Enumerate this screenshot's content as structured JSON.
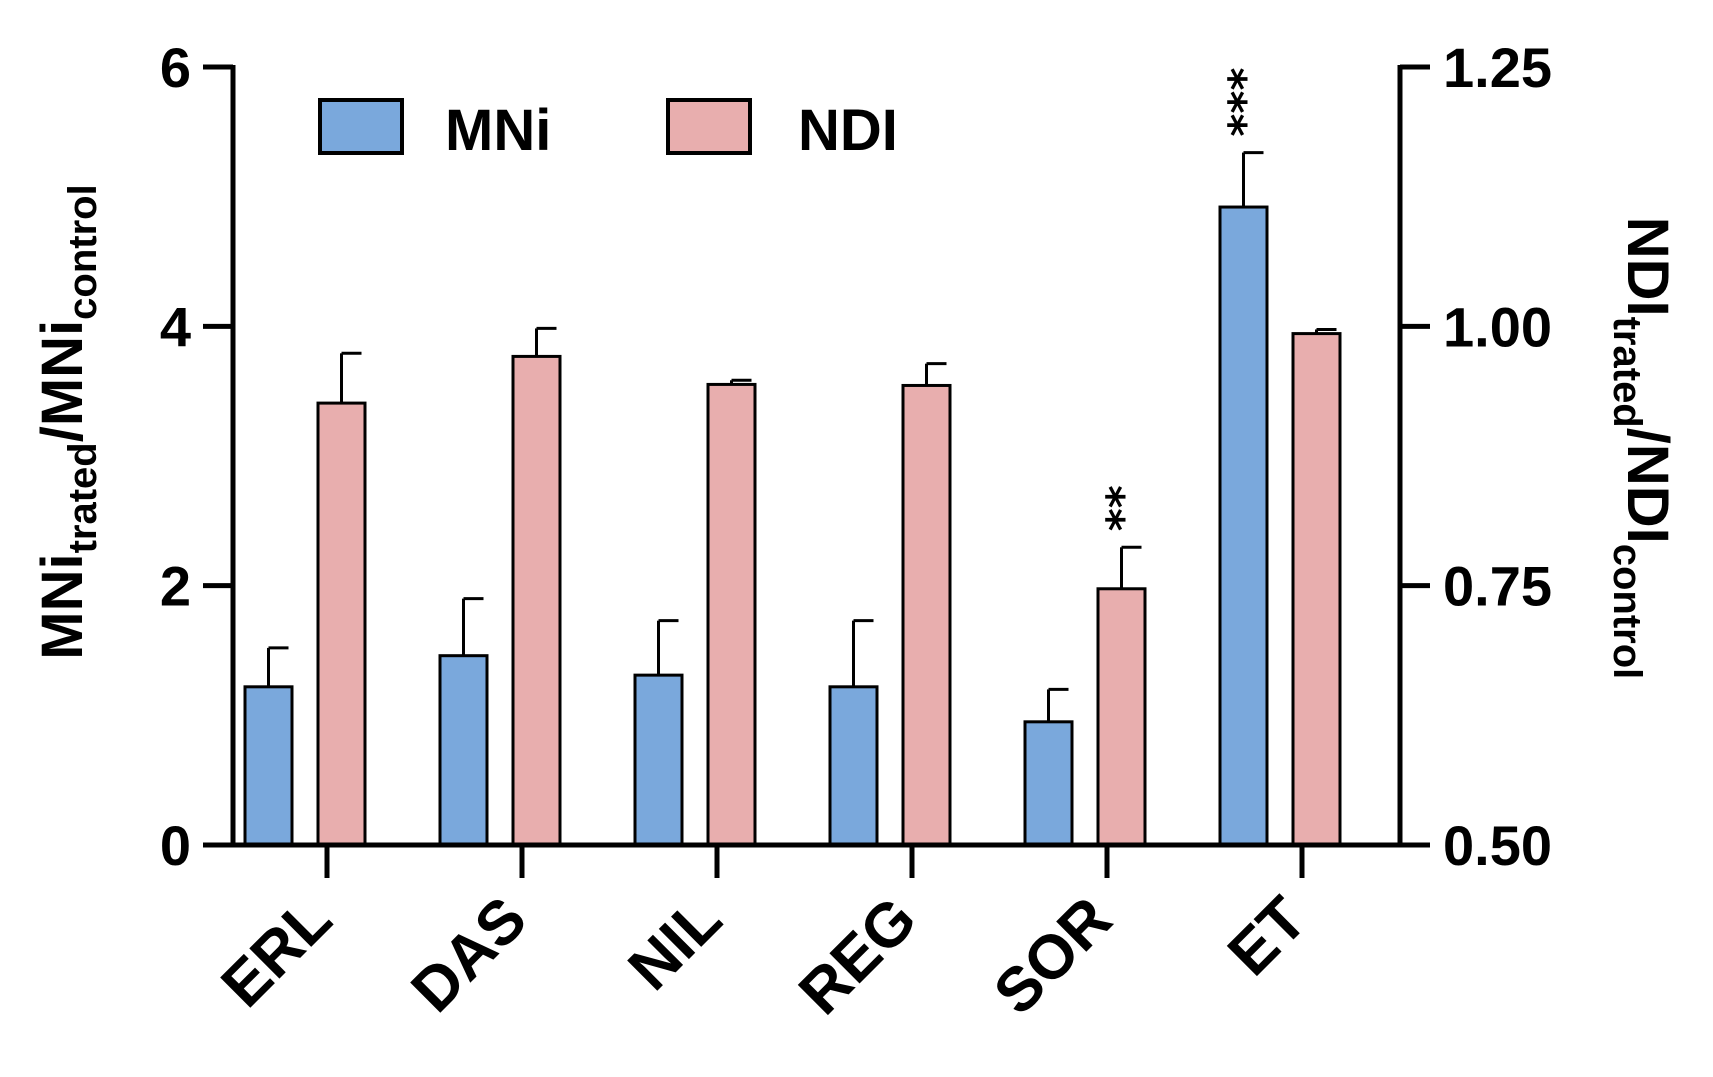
{
  "chart_data": {
    "type": "bar",
    "categories": [
      "ERL",
      "DAS",
      "NIL",
      "REG",
      "SOR",
      "ET"
    ],
    "series": [
      {
        "name": "MNi",
        "axis": "left",
        "color": "#7aa8dc",
        "values": [
          1.22,
          1.46,
          1.31,
          1.22,
          0.95,
          4.92
        ],
        "errors": [
          0.3,
          0.44,
          0.42,
          0.51,
          0.25,
          0.42
        ],
        "significance": [
          "",
          "",
          "",
          "",
          "",
          "***"
        ]
      },
      {
        "name": "NDI",
        "axis": "right",
        "color": "#e8aeae",
        "values": [
          0.926,
          0.971,
          0.944,
          0.943,
          0.747,
          0.993
        ],
        "errors": [
          0.048,
          0.027,
          0.004,
          0.021,
          0.04,
          0.004
        ],
        "significance": [
          "",
          "",
          "",
          "",
          "**",
          ""
        ]
      }
    ],
    "left_axis": {
      "ylim": [
        0,
        6
      ],
      "ticks": [
        "0",
        "2",
        "4",
        "6"
      ],
      "tick_values": [
        0,
        2,
        4,
        6
      ],
      "label_main_1": "MNi",
      "label_sub_1": "trated",
      "label_main_2": "/MNi",
      "label_sub_2": "control"
    },
    "right_axis": {
      "ylim": [
        0.5,
        1.25
      ],
      "ticks": [
        "0.50",
        "0.75",
        "1.00",
        "1.25"
      ],
      "tick_values": [
        0.5,
        0.75,
        1.0,
        1.25
      ],
      "label_main_1": "NDI",
      "label_sub_1": "trated",
      "label_main_2": "/NDI",
      "label_sub_2": "control"
    },
    "legend": {
      "position": "top-left",
      "entries": [
        "MNi",
        "NDI"
      ]
    }
  }
}
